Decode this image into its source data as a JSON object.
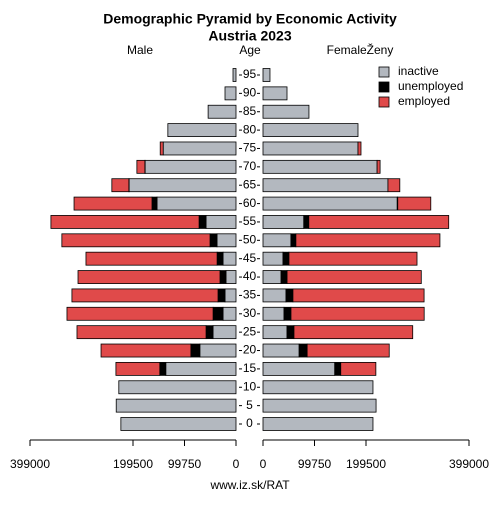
{
  "chart_data": {
    "type": "pyramid",
    "title": "Demographic Pyramid by Economic Activity",
    "subtitle": "Austria 2023",
    "left_label": "Male",
    "center_label": "Age",
    "right_label": "FemaleŽeny",
    "source": "www.iz.sk/RAT",
    "categories": [
      0,
      5,
      10,
      15,
      20,
      25,
      30,
      35,
      40,
      45,
      50,
      55,
      60,
      65,
      70,
      75,
      80,
      85,
      90,
      95
    ],
    "xlim": [
      0,
      399000
    ],
    "xticks": [
      0,
      99750,
      199500,
      399000
    ],
    "legend": "top-right",
    "series": [
      {
        "name": "inactive",
        "color": "#b3b8bf",
        "male_values": [
          223000,
          232000,
          227000,
          136000,
          70000,
          44500,
          25000,
          21300,
          19400,
          25000,
          36800,
          58000,
          153000,
          207000,
          176000,
          141000,
          132000,
          54000,
          21300,
          5800
        ],
        "female_values": [
          213000,
          219000,
          213000,
          139000,
          70000,
          46500,
          40700,
          44500,
          35000,
          38700,
          54000,
          79000,
          260000,
          242000,
          221000,
          184000,
          184000,
          89000,
          46500,
          13500
        ]
      },
      {
        "name": "unemployed",
        "color": "#000000",
        "male_values": [
          0,
          0,
          0,
          11600,
          17400,
          13500,
          19400,
          13500,
          11600,
          11600,
          13500,
          13500,
          9700,
          500,
          500,
          0,
          0,
          0,
          0,
          0
        ],
        "female_values": [
          0,
          0,
          0,
          11600,
          15500,
          13500,
          13500,
          13500,
          11600,
          11600,
          9700,
          9700,
          1000,
          0,
          0,
          0,
          0,
          0,
          0,
          0
        ]
      },
      {
        "name": "employed",
        "color": "#e04a4a",
        "male_values": [
          0,
          0,
          0,
          85000,
          174000,
          250000,
          283000,
          283000,
          275000,
          254000,
          287000,
          287000,
          151000,
          33000,
          15500,
          5800,
          0,
          0,
          0,
          0
        ],
        "female_values": [
          0,
          0,
          0,
          68000,
          159000,
          230000,
          258000,
          254000,
          260000,
          248000,
          279000,
          271000,
          64000,
          23000,
          5800,
          5800,
          0,
          0,
          0,
          0
        ]
      }
    ]
  }
}
